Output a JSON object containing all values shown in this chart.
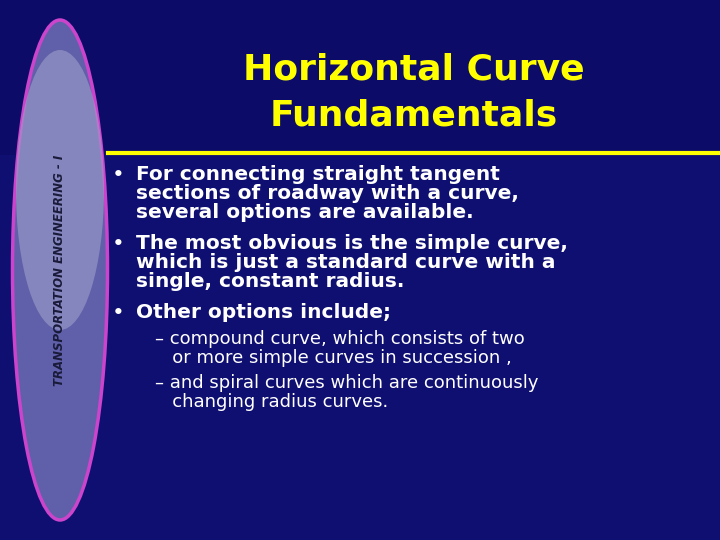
{
  "title_line1": "Horizontal Curve",
  "title_line2": "Fundamentals",
  "title_color": "#FFFF00",
  "title_fontsize": 26,
  "bg_top_color": "#0a0a60",
  "bg_body_color": "#0d0d70",
  "separator_color": "#FFFF00",
  "ellipse_fill_top": "#a0a0cc",
  "ellipse_fill_bot": "#6060aa",
  "ellipse_edge_color": "#cc44cc",
  "sidebar_text": "TRANSPORTATION ENGINEERING - I",
  "sidebar_color": "#1a1a3a",
  "sidebar_fontsize": 8.5,
  "bullet_color": "#ffffff",
  "bullet_fontsize": 14.5,
  "sub_bullet_fontsize": 13,
  "bullet1_lines": [
    "For connecting straight tangent",
    "sections of roadway with a curve,",
    "several options are available."
  ],
  "bullet2_lines": [
    "The most obvious is the simple curve,",
    "which is just a standard curve with a",
    "single, constant radius."
  ],
  "bullet3_lines": [
    "Other options include;"
  ],
  "sub1_lines": [
    "– compound curve, which consists of two",
    "   or more simple curves in succession ,"
  ],
  "sub2_lines": [
    "– and spiral curves which are continuously",
    "   changing radius curves."
  ]
}
